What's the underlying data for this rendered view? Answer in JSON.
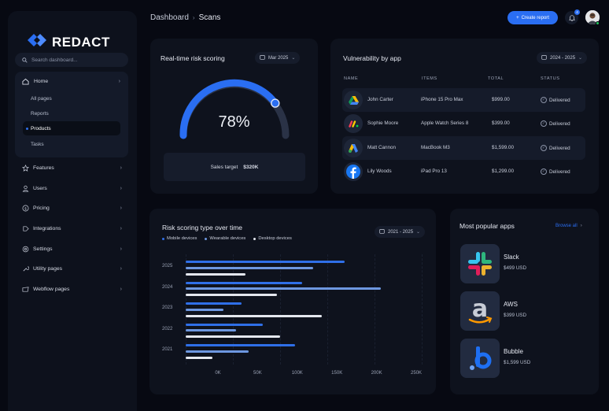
{
  "brand": {
    "name": "REDACT",
    "accent": "#2a6ef2"
  },
  "sidebar": {
    "search_placeholder": "Search dashboard...",
    "home": {
      "label": "Home",
      "subitems": [
        {
          "label": "All pages",
          "active": false
        },
        {
          "label": "Reports",
          "active": false
        },
        {
          "label": "Products",
          "active": true
        },
        {
          "label": "Tasks",
          "active": false
        }
      ]
    },
    "items": [
      {
        "label": "Features",
        "icon": "star-icon"
      },
      {
        "label": "Users",
        "icon": "user-icon"
      },
      {
        "label": "Pricing",
        "icon": "dollar-icon"
      },
      {
        "label": "Integrations",
        "icon": "puzzle-icon"
      },
      {
        "label": "Settings",
        "icon": "gear-icon"
      },
      {
        "label": "Utility pages",
        "icon": "wrench-icon"
      },
      {
        "label": "Webflow pages",
        "icon": "folder-icon"
      }
    ]
  },
  "header": {
    "breadcrumb": [
      "Dashboard",
      "Scans"
    ],
    "breadcrumb_sep": "›",
    "create_button": "Create report",
    "create_icon": "+",
    "notification_count": "4"
  },
  "risk_card": {
    "title": "Real-time risk scoring",
    "date_filter": "Mar 2025",
    "percent_label": "78%",
    "percent": 78,
    "target_label": "Sales target",
    "target_value": "$320K"
  },
  "vuln_card": {
    "title": "Vulnerability by app",
    "date_filter": "2024 - 2025",
    "columns": [
      "NAME",
      "ITEMS",
      "TOTAL",
      "STATUS"
    ],
    "rows": [
      {
        "app_icon": "google-drive-icon",
        "name": "John Carter",
        "item": "iPhone 15 Pro Max",
        "total": "$999.00",
        "status": "Delivered"
      },
      {
        "app_icon": "monday-icon",
        "name": "Sophie Moore",
        "item": "Apple Watch Series 8",
        "total": "$399.00",
        "status": "Delivered"
      },
      {
        "app_icon": "google-ads-icon",
        "name": "Matt Cannon",
        "item": "MacBook M3",
        "total": "$1,599.00",
        "status": "Delivered"
      },
      {
        "app_icon": "facebook-icon",
        "name": "Lily Woods",
        "item": "iPad Pro 13",
        "total": "$1,299.00",
        "status": "Delivered"
      }
    ]
  },
  "type_card": {
    "title": "Risk scoring type over time",
    "date_filter": "2021 - 2025"
  },
  "chart_data": {
    "type": "bar",
    "orientation": "horizontal",
    "title": "Risk scoring type over time",
    "categories": [
      "2025",
      "2024",
      "2023",
      "2022",
      "2021"
    ],
    "series": [
      {
        "name": "Mobile devices",
        "color": "#2f6fe8",
        "values": [
          168,
          123,
          59,
          82,
          116
        ]
      },
      {
        "name": "Wearable devices",
        "color": "#6d97e0",
        "values": [
          135,
          207,
          40,
          53,
          67
        ]
      },
      {
        "name": "Desktop devices",
        "color": "#e4e7ee",
        "values": [
          63,
          97,
          144,
          100,
          28
        ]
      }
    ],
    "xticks": [
      "0K",
      "50K",
      "100K",
      "150K",
      "200K",
      "250K"
    ],
    "xlim": [
      0,
      250
    ],
    "unit": "K",
    "xlabel": "",
    "ylabel": "",
    "grid": true,
    "legend_position": "top-left"
  },
  "popular_card": {
    "title": "Most popular apps",
    "browse_label": "Browse all",
    "apps": [
      {
        "name": "Slack",
        "price": "$499 USD",
        "icon": "slack-icon"
      },
      {
        "name": "AWS",
        "price": "$399 USD",
        "icon": "amazon-icon"
      },
      {
        "name": "Bubble",
        "price": "$1,599 USD",
        "icon": "bubble-icon"
      }
    ]
  }
}
